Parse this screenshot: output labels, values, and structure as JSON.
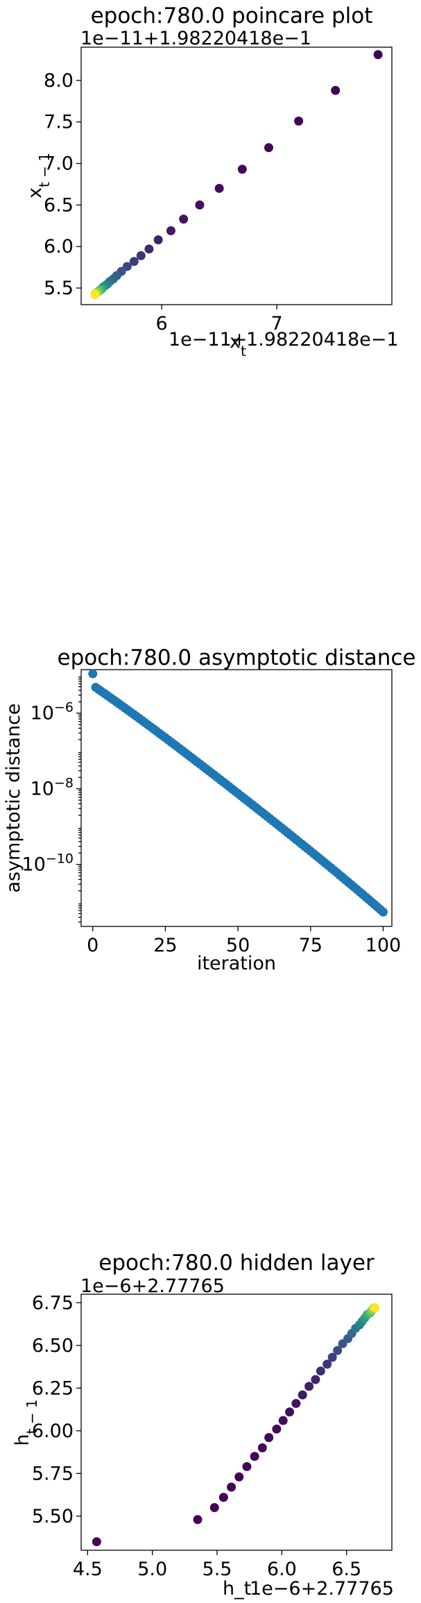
{
  "chart_data": [
    {
      "type": "scatter",
      "title": "epoch:780.0 poincare plot",
      "xlabel_text": "x",
      "xlabel_sub": "t",
      "ylabel_text": "x",
      "ylabel_sub": "t − 1",
      "x_offset_label": "1e−11+1.98220418e−1",
      "y_offset_label": "1e−11+1.98220418e−1",
      "x_offset_label_left": "1e−11+",
      "x_offset_label_right": "1.98220418e−1",
      "xlim": [
        5.3,
        8.0
      ],
      "ylim": [
        5.3,
        8.4
      ],
      "xticks": [
        6,
        7
      ],
      "xtick_labels": [
        "6",
        "7"
      ],
      "yticks": [
        5.5,
        6.0,
        6.5,
        7.0,
        7.5,
        8.0
      ],
      "ytick_labels": [
        "5.5",
        "6.0",
        "6.5",
        "7.0",
        "7.5",
        "8.0"
      ],
      "grid": false,
      "colormap": "viridis",
      "points": [
        {
          "x": 7.88,
          "y": 8.31
        },
        {
          "x": 7.51,
          "y": 7.88
        },
        {
          "x": 7.19,
          "y": 7.51
        },
        {
          "x": 6.93,
          "y": 7.19
        },
        {
          "x": 6.7,
          "y": 6.93
        },
        {
          "x": 6.5,
          "y": 6.7
        },
        {
          "x": 6.33,
          "y": 6.5
        },
        {
          "x": 6.19,
          "y": 6.33
        },
        {
          "x": 6.08,
          "y": 6.19
        },
        {
          "x": 5.97,
          "y": 6.08
        },
        {
          "x": 5.89,
          "y": 5.97
        },
        {
          "x": 5.82,
          "y": 5.89
        },
        {
          "x": 5.76,
          "y": 5.82
        },
        {
          "x": 5.7,
          "y": 5.76
        },
        {
          "x": 5.65,
          "y": 5.7
        },
        {
          "x": 5.61,
          "y": 5.65
        },
        {
          "x": 5.58,
          "y": 5.61
        },
        {
          "x": 5.55,
          "y": 5.58
        },
        {
          "x": 5.53,
          "y": 5.55
        },
        {
          "x": 5.51,
          "y": 5.53
        },
        {
          "x": 5.49,
          "y": 5.51
        },
        {
          "x": 5.48,
          "y": 5.49
        },
        {
          "x": 5.47,
          "y": 5.48
        },
        {
          "x": 5.46,
          "y": 5.47
        },
        {
          "x": 5.45,
          "y": 5.46
        },
        {
          "x": 5.44,
          "y": 5.45
        },
        {
          "x": 5.43,
          "y": 5.44
        },
        {
          "x": 5.42,
          "y": 5.43
        },
        {
          "x": 5.42,
          "y": 5.42
        }
      ]
    },
    {
      "type": "scatter",
      "title": "epoch:780.0 asymptotic distance",
      "xlabel": "iteration",
      "ylabel": "asymptotic distance",
      "yscale": "log",
      "xlim": [
        -4,
        103
      ],
      "ylim_log10": [
        -11.64,
        -4.85
      ],
      "xticks": [
        0,
        25,
        50,
        75,
        100
      ],
      "xtick_labels": [
        "0",
        "25",
        "50",
        "75",
        "100"
      ],
      "yticks_log10": [
        -6,
        -8,
        -10
      ],
      "ytick_base": "10",
      "ytick_exponents": [
        "−6",
        "−8",
        "−10"
      ],
      "grid": false,
      "color": "#1f77b4",
      "x_range": [
        0,
        100
      ],
      "y_start": 1.1e-05,
      "y_second": 4.8e-06,
      "y_end": 5.5e-12
    },
    {
      "type": "scatter",
      "title": "epoch:780.0 hidden layer",
      "xlabel": "h_t",
      "ylabel_text": "h",
      "ylabel_sub": "t − 1",
      "x_offset_label": "1e−6+2.77765",
      "y_offset_label": "1e−6+2.77765",
      "xlim": [
        4.45,
        6.85
      ],
      "ylim": [
        5.3,
        6.8
      ],
      "xticks": [
        4.5,
        5.0,
        5.5,
        6.0,
        6.5
      ],
      "xtick_labels": [
        "4.5",
        "5.0",
        "5.5",
        "6.0",
        "6.5"
      ],
      "yticks": [
        5.5,
        5.75,
        6.0,
        6.25,
        6.5,
        6.75
      ],
      "ytick_labels": [
        "5.50",
        "5.75",
        "6.00",
        "6.25",
        "6.50",
        "6.75"
      ],
      "grid": false,
      "colormap": "viridis",
      "points": [
        {
          "x": 4.57,
          "y": 5.35
        },
        {
          "x": 5.35,
          "y": 5.48
        },
        {
          "x": 5.48,
          "y": 5.55
        },
        {
          "x": 5.55,
          "y": 5.61
        },
        {
          "x": 5.61,
          "y": 5.67
        },
        {
          "x": 5.67,
          "y": 5.73
        },
        {
          "x": 5.73,
          "y": 5.79
        },
        {
          "x": 5.79,
          "y": 5.85
        },
        {
          "x": 5.85,
          "y": 5.9
        },
        {
          "x": 5.9,
          "y": 5.96
        },
        {
          "x": 5.96,
          "y": 6.01
        },
        {
          "x": 6.01,
          "y": 6.06
        },
        {
          "x": 6.06,
          "y": 6.11
        },
        {
          "x": 6.11,
          "y": 6.16
        },
        {
          "x": 6.16,
          "y": 6.21
        },
        {
          "x": 6.21,
          "y": 6.26
        },
        {
          "x": 6.26,
          "y": 6.3
        },
        {
          "x": 6.3,
          "y": 6.35
        },
        {
          "x": 6.35,
          "y": 6.39
        },
        {
          "x": 6.39,
          "y": 6.43
        },
        {
          "x": 6.43,
          "y": 6.47
        },
        {
          "x": 6.47,
          "y": 6.51
        },
        {
          "x": 6.51,
          "y": 6.54
        },
        {
          "x": 6.54,
          "y": 6.57
        },
        {
          "x": 6.57,
          "y": 6.6
        },
        {
          "x": 6.6,
          "y": 6.62
        },
        {
          "x": 6.62,
          "y": 6.64
        },
        {
          "x": 6.64,
          "y": 6.66
        },
        {
          "x": 6.66,
          "y": 6.68
        },
        {
          "x": 6.68,
          "y": 6.69
        },
        {
          "x": 6.69,
          "y": 6.7
        },
        {
          "x": 6.7,
          "y": 6.71
        },
        {
          "x": 6.71,
          "y": 6.72
        },
        {
          "x": 6.72,
          "y": 6.72
        }
      ]
    }
  ]
}
